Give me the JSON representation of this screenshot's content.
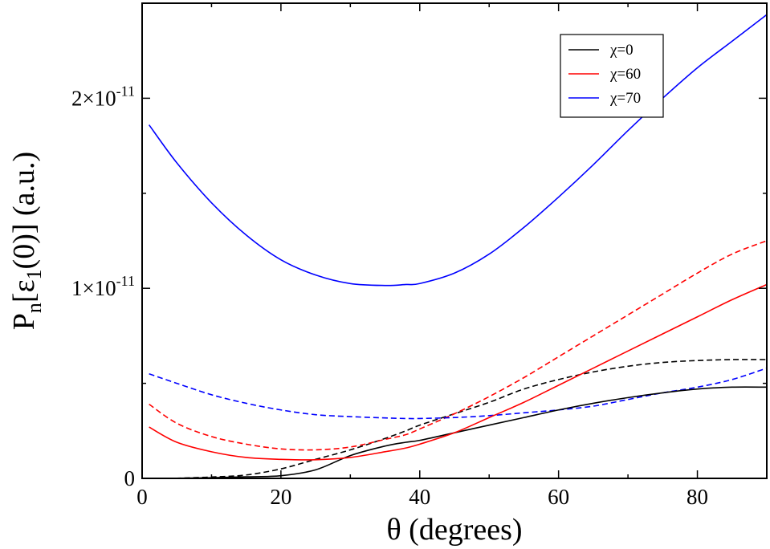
{
  "chart_data": {
    "type": "line",
    "title": "",
    "xlabel": "θ (degrees)",
    "ylabel_parts": {
      "base": "P",
      "sub_n": "n",
      "mid": "[ε",
      "sub_1": "1",
      "tail": "(0)] (a.u.)"
    },
    "xlim": [
      0,
      90
    ],
    "ylim": [
      0,
      2.5e-11
    ],
    "grid": false,
    "legend_position": "top-right",
    "x_ticks": [
      {
        "value": 0,
        "label": "0"
      },
      {
        "value": 20,
        "label": "20"
      },
      {
        "value": 40,
        "label": "40"
      },
      {
        "value": 60,
        "label": "60"
      },
      {
        "value": 80,
        "label": "80"
      }
    ],
    "y_ticks": [
      {
        "value": 0,
        "label": "0",
        "mantissa": "",
        "exponent": ""
      },
      {
        "value": 1e-11,
        "label": "1×10-11",
        "mantissa": "1×10",
        "exponent": "-11"
      },
      {
        "value": 2e-11,
        "label": "2×10-11",
        "mantissa": "2×10",
        "exponent": "-11"
      }
    ],
    "x": [
      1,
      5,
      10,
      15,
      20,
      25,
      30,
      35,
      38,
      40,
      45,
      50,
      55,
      60,
      65,
      70,
      75,
      80,
      85,
      90
    ],
    "series": [
      {
        "name": "χ=0",
        "color": "#000000",
        "dash": false,
        "in_legend": true,
        "values": [
          0,
          8e-15,
          3.5e-14,
          8e-14,
          1.4e-13,
          4.5e-13,
          1.2e-12,
          1.7e-12,
          1.9e-12,
          2e-12,
          2.4e-12,
          2.8e-12,
          3.2e-12,
          3.6e-12,
          3.95e-12,
          4.25e-12,
          4.5e-12,
          4.7e-12,
          4.8e-12,
          4.8e-12
        ]
      },
      {
        "name": "χ=60",
        "color": "#ff0000",
        "dash": false,
        "in_legend": true,
        "values": [
          2.7e-12,
          1.9e-12,
          1.4e-12,
          1.1e-12,
          1e-12,
          9.8e-13,
          1.1e-12,
          1.4e-12,
          1.6e-12,
          1.8e-12,
          2.4e-12,
          3.2e-12,
          4e-12,
          4.9e-12,
          5.8e-12,
          6.7e-12,
          7.6e-12,
          8.5e-12,
          9.4e-12,
          1.02e-11
        ]
      },
      {
        "name": "χ=70",
        "color": "#0000ff",
        "dash": false,
        "in_legend": true,
        "values": [
          1.86e-11,
          1.66e-11,
          1.45e-11,
          1.28e-11,
          1.15e-11,
          1.07e-11,
          1.025e-11,
          1.015e-11,
          1.02e-11,
          1.025e-11,
          1.08e-11,
          1.18e-11,
          1.32e-11,
          1.48e-11,
          1.65e-11,
          1.83e-11,
          2e-11,
          2.16e-11,
          2.3e-11,
          2.44e-11
        ]
      },
      {
        "name": "χ=0 (dashed)",
        "color": "#000000",
        "dash": true,
        "in_legend": false,
        "values": [
          0,
          1e-14,
          7e-14,
          1.8e-13,
          5e-13,
          1e-12,
          1.5e-12,
          2.1e-12,
          2.5e-12,
          2.8e-12,
          3.4e-12,
          4e-12,
          4.7e-12,
          5.2e-12,
          5.6e-12,
          5.9e-12,
          6.1e-12,
          6.2e-12,
          6.25e-12,
          6.25e-12
        ]
      },
      {
        "name": "χ=60 (dashed)",
        "color": "#ff0000",
        "dash": true,
        "in_legend": false,
        "values": [
          3.9e-12,
          2.9e-12,
          2.2e-12,
          1.8e-12,
          1.55e-12,
          1.5e-12,
          1.65e-12,
          2.05e-12,
          2.3e-12,
          2.6e-12,
          3.4e-12,
          4.3e-12,
          5.3e-12,
          6.4e-12,
          7.5e-12,
          8.6e-12,
          9.7e-12,
          1.08e-11,
          1.18e-11,
          1.25e-11
        ]
      },
      {
        "name": "χ=70 (dashed)",
        "color": "#0000ff",
        "dash": true,
        "in_legend": false,
        "values": [
          5.5e-12,
          5e-12,
          4.4e-12,
          3.95e-12,
          3.6e-12,
          3.35e-12,
          3.25e-12,
          3.18e-12,
          3.15e-12,
          3.15e-12,
          3.2e-12,
          3.3e-12,
          3.45e-12,
          3.6e-12,
          3.8e-12,
          4.15e-12,
          4.5e-12,
          4.8e-12,
          5.2e-12,
          5.8e-12
        ]
      }
    ]
  }
}
